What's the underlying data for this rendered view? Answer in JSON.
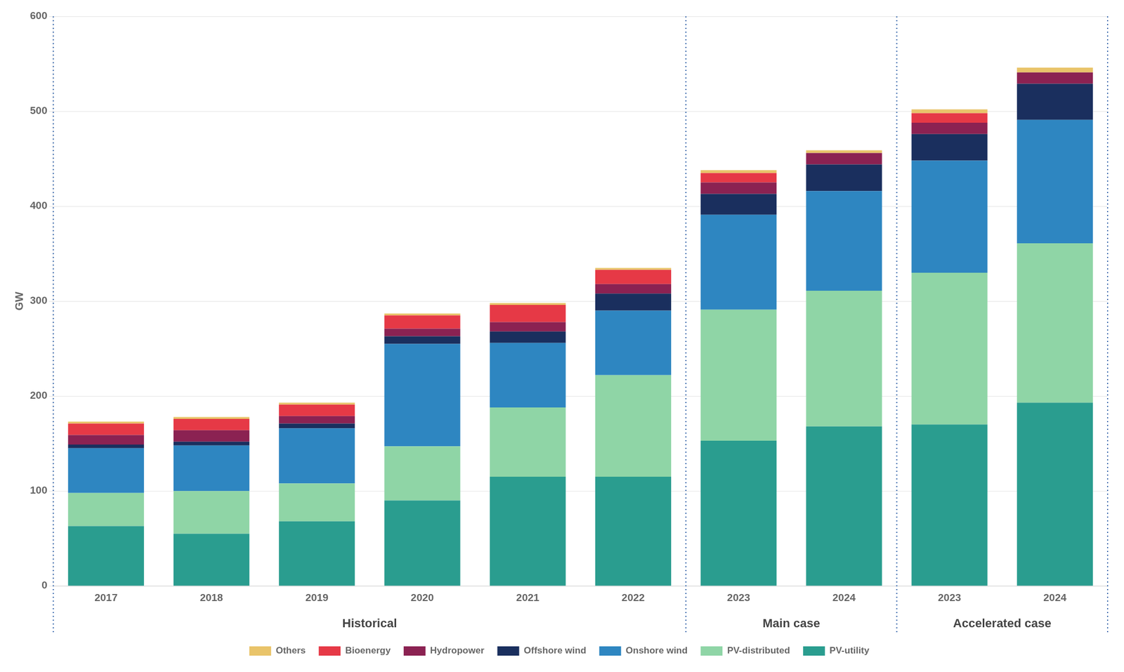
{
  "chart_data": {
    "type": "bar",
    "stacked": true,
    "categories": [
      "2017",
      "2018",
      "2019",
      "2020",
      "2021",
      "2022",
      "2023",
      "2024",
      "2023",
      "2024"
    ],
    "series": [
      {
        "name": "PV-utility",
        "color": "#2a9d8f",
        "values": [
          63,
          55,
          68,
          90,
          115,
          115,
          153,
          168,
          170,
          193
        ]
      },
      {
        "name": "PV-distributed",
        "color": "#8fd5a6",
        "values": [
          35,
          45,
          40,
          57,
          73,
          107,
          138,
          143,
          160,
          168
        ]
      },
      {
        "name": "Onshore wind",
        "color": "#2e86c1",
        "values": [
          47,
          48,
          58,
          108,
          68,
          68,
          100,
          105,
          118,
          130
        ]
      },
      {
        "name": "Offshore wind",
        "color": "#1a2f5e",
        "values": [
          4,
          4,
          5,
          8,
          12,
          18,
          22,
          28,
          28,
          38
        ]
      },
      {
        "name": "Hydropower",
        "color": "#8b2252",
        "values": [
          10,
          12,
          8,
          8,
          10,
          10,
          12,
          12,
          12,
          12
        ]
      },
      {
        "name": "Bioenergy",
        "color": "#e63946",
        "values": [
          12,
          12,
          12,
          14,
          18,
          15,
          10,
          0,
          10,
          0
        ]
      },
      {
        "name": "Others",
        "color": "#e9c46a",
        "values": [
          2,
          2,
          2,
          2,
          2,
          2,
          3,
          3,
          4,
          5
        ]
      }
    ],
    "ylabel": "GW",
    "ylim": [
      0,
      600
    ],
    "yticks": [
      0,
      100,
      200,
      300,
      400,
      500,
      600
    ],
    "grid": true,
    "legend": "bottom",
    "annotations": [
      "Historical",
      "Main case",
      "Accelerated case"
    ]
  }
}
